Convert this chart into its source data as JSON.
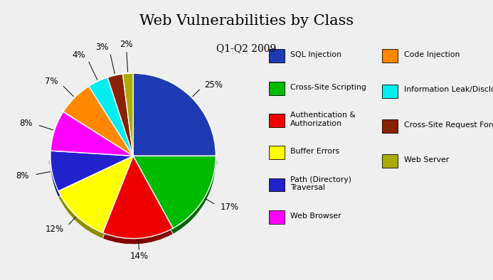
{
  "title": "Web Vulnerabilities by Class",
  "subtitle": "Q1-Q2 2009",
  "slices": [
    {
      "label": "SQL Injection",
      "value": 25,
      "color": "#1E3BB3"
    },
    {
      "label": "Cross-Site Scripting",
      "value": 17,
      "color": "#00BB00"
    },
    {
      "label": "Authentication & Authorization",
      "value": 14,
      "color": "#EE0000"
    },
    {
      "label": "Buffer Errors",
      "value": 12,
      "color": "#FFFF00"
    },
    {
      "label": "Path (Directory) Traversal",
      "value": 8,
      "color": "#2222CC"
    },
    {
      "label": "Web Browser",
      "value": 8,
      "color": "#FF00FF"
    },
    {
      "label": "Code Injection",
      "value": 7,
      "color": "#FF8800"
    },
    {
      "label": "Information Leak/Disclosure",
      "value": 4,
      "color": "#00EEEE"
    },
    {
      "label": "Cross-Site Request Forgery",
      "value": 3,
      "color": "#882200"
    },
    {
      "label": "Web Server",
      "value": 2,
      "color": "#AAAA00"
    }
  ],
  "legend_left": [
    {
      "label": "SQL Injection",
      "color": "#1E3BB3"
    },
    {
      "label": "Cross-Site Scripting",
      "color": "#00BB00"
    },
    {
      "label": "Authentication &\nAuthorization",
      "color": "#EE0000"
    },
    {
      "label": "Buffer Errors",
      "color": "#FFFF00"
    },
    {
      "label": "Path (Directory)\nTraversal",
      "color": "#2222CC"
    },
    {
      "label": "Web Browser",
      "color": "#FF00FF"
    }
  ],
  "legend_right": [
    {
      "label": "Code Injection",
      "color": "#FF8800"
    },
    {
      "label": "Information Leak/Disclosure",
      "color": "#00EEEE"
    },
    {
      "label": "Cross-Site Request Forgery",
      "color": "#882200"
    },
    {
      "label": "Web Server",
      "color": "#AAAA00"
    }
  ],
  "background_color": "#EFEFEF",
  "startangle": 90
}
